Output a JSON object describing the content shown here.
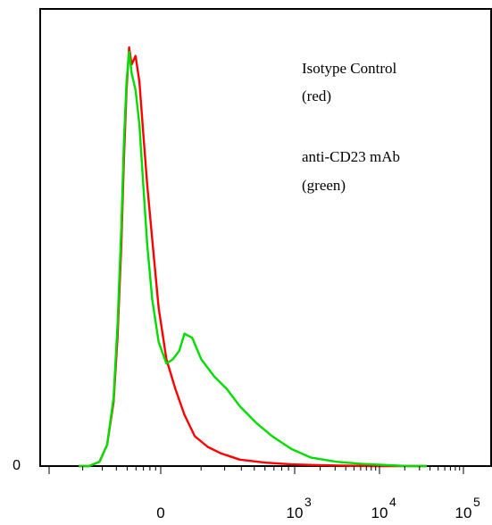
{
  "chart_data": {
    "type": "line",
    "title": "",
    "xlabel": "",
    "ylabel": "",
    "x_scale": "log",
    "x_tick_labels": [
      {
        "label": "0",
        "exp": ""
      },
      {
        "label": "10",
        "exp": "3"
      },
      {
        "label": "10",
        "exp": "4"
      },
      {
        "label": "10",
        "exp": "5"
      }
    ],
    "y_tick_labels": [
      "0"
    ],
    "annotations": [
      "Isotype Control",
      "(red)",
      "anti-CD23 mAb",
      "(green)"
    ],
    "series": [
      {
        "color": "#ff0000",
        "description": "isotype control",
        "x": [
          0.3,
          0.38,
          0.46,
          0.52,
          0.57,
          0.6,
          0.63,
          0.65,
          0.67,
          0.69,
          0.71,
          0.74,
          0.77,
          0.8,
          0.83,
          0.87,
          0.92,
          0.98,
          1.05,
          1.12,
          1.2,
          1.3,
          1.4,
          1.55,
          1.75,
          1.95,
          2.15,
          2.35,
          2.6,
          2.8,
          3.0
        ],
        "y": [
          0.0,
          0.0,
          0.01,
          0.05,
          0.15,
          0.3,
          0.52,
          0.72,
          0.88,
          0.98,
          0.94,
          0.96,
          0.9,
          0.78,
          0.66,
          0.53,
          0.37,
          0.25,
          0.18,
          0.12,
          0.07,
          0.045,
          0.03,
          0.015,
          0.008,
          0.004,
          0.002,
          0.001,
          0.0,
          0.0,
          0.0
        ]
      },
      {
        "color": "#00dd00",
        "description": "anti-CD23 mAb",
        "x": [
          0.3,
          0.38,
          0.46,
          0.52,
          0.57,
          0.6,
          0.63,
          0.65,
          0.67,
          0.69,
          0.71,
          0.74,
          0.77,
          0.8,
          0.83,
          0.87,
          0.92,
          0.98,
          1.03,
          1.08,
          1.12,
          1.18,
          1.25,
          1.35,
          1.45,
          1.55,
          1.68,
          1.8,
          1.95,
          2.1,
          2.3,
          2.5,
          2.7,
          2.85,
          3.0
        ],
        "y": [
          0.0,
          0.0,
          0.01,
          0.05,
          0.16,
          0.33,
          0.56,
          0.76,
          0.9,
          0.97,
          0.92,
          0.88,
          0.8,
          0.66,
          0.52,
          0.39,
          0.29,
          0.24,
          0.25,
          0.27,
          0.31,
          0.3,
          0.25,
          0.21,
          0.18,
          0.14,
          0.1,
          0.07,
          0.04,
          0.02,
          0.01,
          0.005,
          0.002,
          0.0,
          0.0
        ]
      }
    ],
    "xlim": [
      0,
      3.5
    ],
    "ylim": [
      0,
      1.07
    ],
    "grid": false,
    "legend": "none"
  }
}
